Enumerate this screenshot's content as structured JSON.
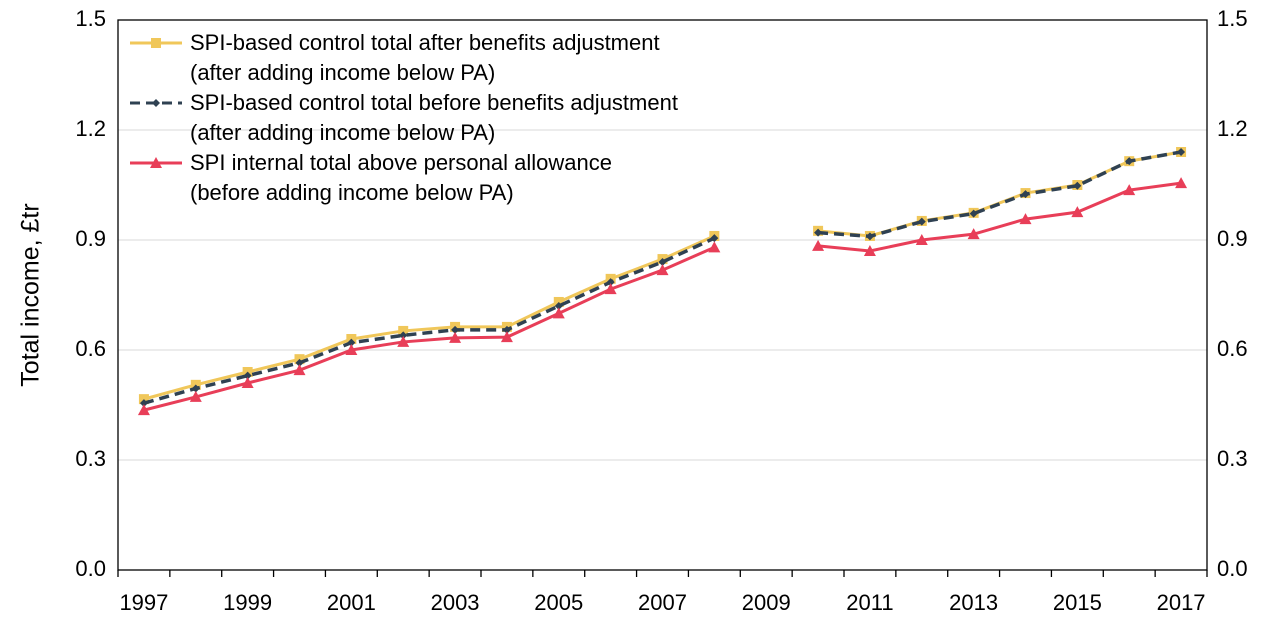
{
  "chart_data": {
    "type": "line",
    "y_label": "Total income, £tr",
    "categories": [
      "1997",
      null,
      "1999",
      null,
      "2001",
      null,
      "2003",
      null,
      "2005",
      null,
      "2007",
      null,
      "2009",
      null,
      "2011",
      null,
      "2013",
      null,
      "2015",
      null,
      "2017"
    ],
    "ylim": [
      0,
      1.5
    ],
    "yticks": [
      {
        "value": 0,
        "label": "0.0"
      },
      0.3,
      0.6,
      0.9,
      1.2,
      1.5
    ],
    "grid": true,
    "legend": "upper left",
    "series": [
      {
        "name": "SPI-based control total after benefits adjustment\n(after adding income below PA)",
        "color": "#f0c75a",
        "marker": "square",
        "dash": false,
        "values": [
          0.466,
          0.505,
          0.54,
          0.575,
          0.63,
          0.652,
          0.663,
          0.663,
          0.731,
          0.794,
          0.848,
          0.911,
          null,
          0.925,
          0.911,
          0.952,
          0.974,
          1.028,
          1.05,
          1.115,
          1.14
        ]
      },
      {
        "name": "SPI-based control total before benefits adjustment\n(after adding income below PA)",
        "color": "#2f4152",
        "marker": "diamond",
        "dash": true,
        "values": [
          0.455,
          0.495,
          0.53,
          0.565,
          0.62,
          0.64,
          0.655,
          0.655,
          0.72,
          0.785,
          0.84,
          0.905,
          null,
          0.92,
          0.91,
          0.95,
          0.972,
          1.025,
          1.048,
          1.115,
          1.14
        ]
      },
      {
        "name": "SPI internal total above personal allowance\n(before adding income below PA)",
        "color": "#e83e58",
        "marker": "triangle",
        "dash": false,
        "values": [
          0.436,
          0.472,
          0.51,
          0.545,
          0.6,
          0.622,
          0.633,
          0.635,
          0.7,
          0.766,
          0.818,
          0.88,
          null,
          0.884,
          0.87,
          0.9,
          0.916,
          0.957,
          0.976,
          1.036,
          1.055
        ]
      }
    ]
  }
}
